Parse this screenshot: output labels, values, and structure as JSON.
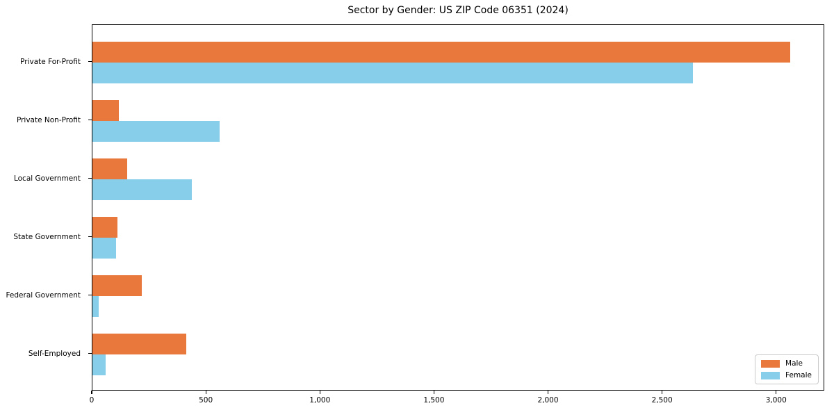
{
  "chart_data": {
    "type": "bar",
    "orientation": "horizontal",
    "title": "Sector by Gender: US ZIP Code 06351 (2024)",
    "categories": [
      "Private For-Profit",
      "Private Non-Profit",
      "Local Government",
      "State Government",
      "Federal Government",
      "Self-Employed"
    ],
    "series": [
      {
        "name": "Male",
        "color": "#e8783c",
        "values": [
          3058,
          116,
          152,
          111,
          215,
          411
        ]
      },
      {
        "name": "Female",
        "color": "#87ceeb",
        "values": [
          2632,
          557,
          436,
          102,
          27,
          58
        ]
      }
    ],
    "xlabel": "",
    "ylabel": "",
    "xlim": [
      0,
      3211
    ],
    "xticks": {
      "values": [
        0,
        500,
        1000,
        1500,
        2000,
        2500,
        3000
      ],
      "labels": [
        "0",
        "500",
        "1,000",
        "1,500",
        "2,000",
        "2,500",
        "3,000"
      ]
    },
    "grid": false,
    "legend": {
      "position": "lower right"
    }
  }
}
